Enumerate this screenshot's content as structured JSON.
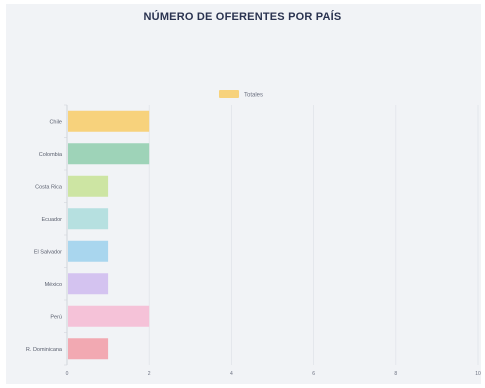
{
  "chart_data": {
    "type": "bar",
    "orientation": "horizontal",
    "title": "NÚMERO DE OFERENTES POR PAÍS",
    "categories": [
      "Chile",
      "Colombia",
      "Costa Rica",
      "Ecuador",
      "El Salvador",
      "México",
      "Perú",
      "R. Dominicana"
    ],
    "series": [
      {
        "name": "Totales",
        "values": [
          2,
          2,
          1,
          1,
          1,
          1,
          2,
          1
        ]
      }
    ],
    "bar_colors": [
      "#f7d27c",
      "#9ed3b8",
      "#cde5a3",
      "#b6e0e0",
      "#a9d6ee",
      "#d4c3f0",
      "#f5c2d8",
      "#f2a9b2"
    ],
    "legend_color": "#f7d27c",
    "legend_position": "top",
    "xlim": [
      0,
      10
    ],
    "x_ticks": [
      "0",
      "2",
      "4",
      "6",
      "8",
      "10"
    ],
    "grid": true
  }
}
